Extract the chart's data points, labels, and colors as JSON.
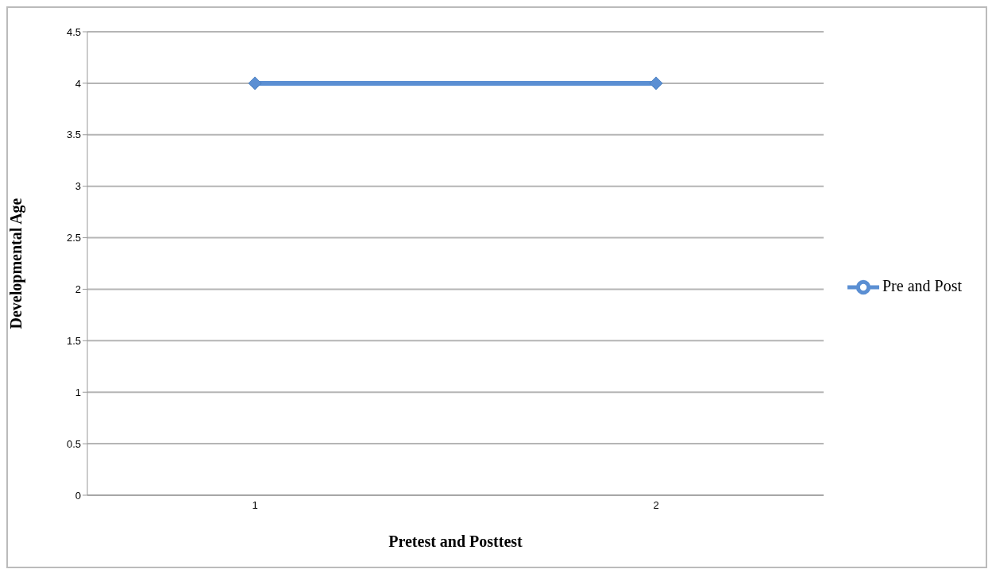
{
  "chart_data": {
    "type": "line",
    "xlabel": "Pretest and Posttest",
    "ylabel": "Developmental Age",
    "categories": [
      "1",
      "2"
    ],
    "series": [
      {
        "name": "Pre and Post",
        "color": "#5b8fd3",
        "values": [
          4,
          4
        ]
      }
    ],
    "ylim": [
      0,
      4.5
    ],
    "yticks": [
      0,
      0.5,
      1,
      1.5,
      2,
      2.5,
      3,
      3.5,
      4,
      4.5
    ],
    "grid": "y",
    "legend": "right",
    "marker": "diamond",
    "line_style": "solid"
  }
}
